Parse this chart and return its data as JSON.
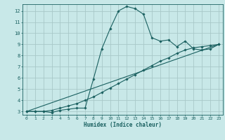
{
  "xlabel": "Humidex (Indice chaleur)",
  "bg_color": "#c8e8e8",
  "grid_color": "#a8c8c8",
  "line_color": "#1a6060",
  "xlim": [
    -0.5,
    23.5
  ],
  "ylim": [
    2.7,
    12.6
  ],
  "xticks": [
    0,
    1,
    2,
    3,
    4,
    5,
    6,
    7,
    8,
    9,
    10,
    11,
    12,
    13,
    14,
    15,
    16,
    17,
    18,
    19,
    20,
    21,
    22,
    23
  ],
  "yticks": [
    3,
    4,
    5,
    6,
    7,
    8,
    9,
    10,
    11,
    12
  ],
  "ref_line_x": [
    0,
    23
  ],
  "ref_line_y": [
    3.0,
    9.0
  ],
  "curve2_x": [
    0,
    1,
    2,
    3,
    4,
    5,
    6,
    7,
    8,
    9,
    10,
    11,
    12,
    13,
    14,
    15,
    16,
    17,
    18,
    19,
    20,
    21,
    22,
    23
  ],
  "curve2_y": [
    3.0,
    3.0,
    3.0,
    3.1,
    3.3,
    3.5,
    3.7,
    4.0,
    4.3,
    4.7,
    5.1,
    5.5,
    5.9,
    6.3,
    6.7,
    7.1,
    7.5,
    7.8,
    8.2,
    8.5,
    8.7,
    8.8,
    8.9,
    9.0
  ],
  "curve3_x": [
    0,
    1,
    2,
    3,
    4,
    5,
    6,
    7,
    8,
    9,
    10,
    11,
    12,
    13,
    14,
    15,
    16,
    17,
    18,
    19,
    20,
    21,
    22,
    23
  ],
  "curve3_y": [
    3.0,
    3.0,
    3.0,
    2.9,
    3.1,
    3.2,
    3.3,
    3.3,
    5.9,
    8.6,
    10.4,
    12.0,
    12.4,
    12.2,
    11.7,
    9.6,
    9.3,
    9.4,
    8.8,
    9.3,
    8.6,
    8.5,
    8.6,
    9.0
  ]
}
